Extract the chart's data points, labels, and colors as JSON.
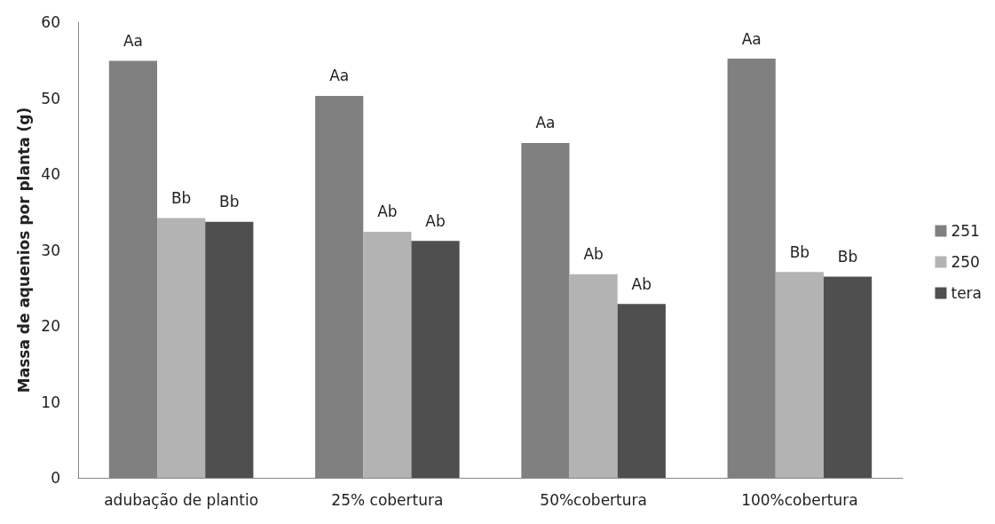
{
  "chart_data": {
    "type": "bar",
    "ylabel": "Massa de aquenios por planta (g)",
    "categories": [
      "adubação de plantio",
      "25% cobertura",
      "50%cobertura",
      "100%cobertura"
    ],
    "series": [
      {
        "name": "251",
        "color": "#808080",
        "values": [
          54.9,
          50.3,
          44.1,
          55.2
        ],
        "value_labels": [
          "Aa",
          "Aa",
          "Aa",
          "Aa"
        ]
      },
      {
        "name": "250",
        "color": "#b3b3b3",
        "values": [
          34.2,
          32.4,
          26.8,
          27.1
        ],
        "value_labels": [
          "Bb",
          "Ab",
          "Ab",
          "Bb"
        ]
      },
      {
        "name": "tera",
        "color": "#4f4f4f",
        "values": [
          33.7,
          31.2,
          22.9,
          26.5
        ],
        "value_labels": [
          "Bb",
          "Ab",
          "Ab",
          "Bb"
        ]
      }
    ],
    "ylim": [
      0,
      60
    ],
    "yticks": [
      0,
      10,
      20,
      30,
      40,
      50,
      60
    ],
    "grid": false,
    "legend": "right"
  }
}
